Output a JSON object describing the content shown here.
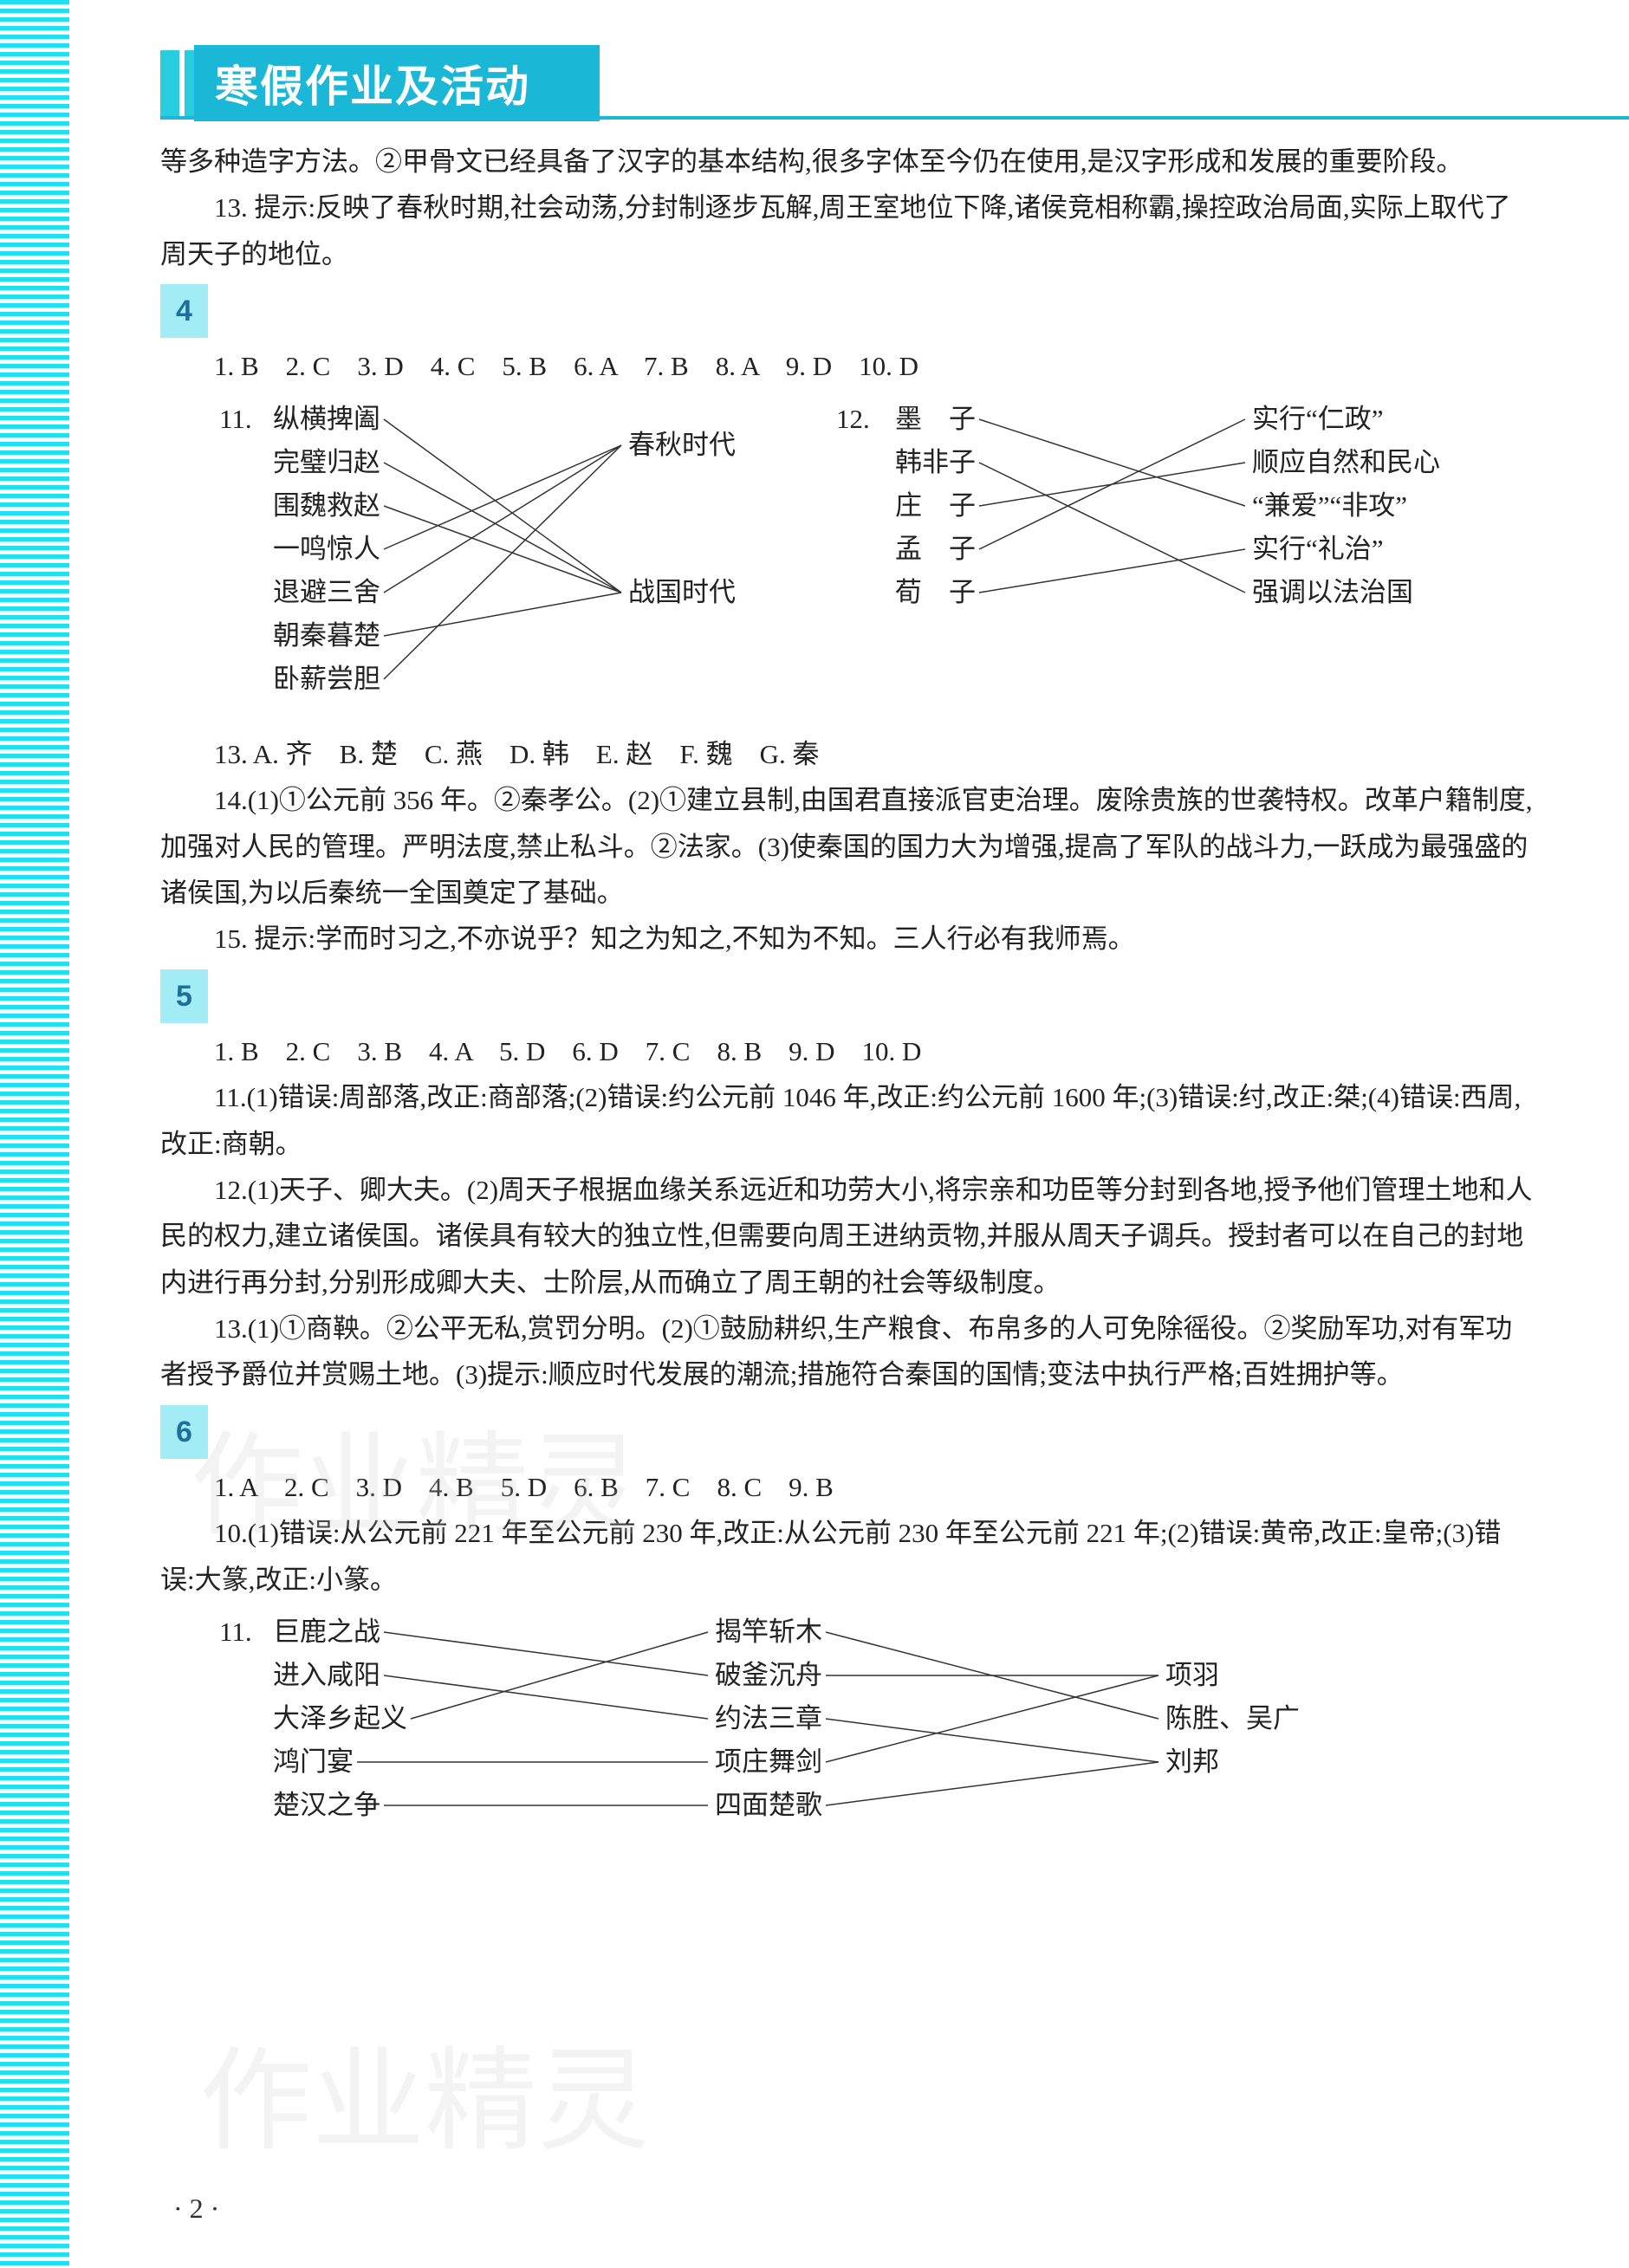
{
  "header": {
    "title": "寒假作业及活动"
  },
  "intro_continuation": {
    "line1": "等多种造字方法。②甲骨文已经具备了汉字的基本结构,很多字体至今仍在使用,是汉字形成和发展的重要阶段。",
    "q13": "13. 提示:反映了春秋时期,社会动荡,分封制逐步瓦解,周王室地位下降,诸侯竞相称霸,操控政治局面,实际上取代了周天子的地位。"
  },
  "section4": {
    "label": "4",
    "mc": "1. B　2. C　3. D　4. C　5. B　6. A　7. B　8. A　9. D　10. D",
    "match11": {
      "prefix": "11.",
      "left": [
        "纵横捭阖",
        "完璧归赵",
        "围魏救赵",
        "一鸣惊人",
        "退避三舍",
        "朝秦暮楚",
        "卧薪尝胆"
      ],
      "right": [
        "春秋时代",
        "战国时代"
      ],
      "edges": [
        [
          0,
          1
        ],
        [
          1,
          1
        ],
        [
          2,
          1
        ],
        [
          3,
          0
        ],
        [
          4,
          0
        ],
        [
          5,
          1
        ],
        [
          6,
          0
        ]
      ],
      "line_color": "#333333"
    },
    "match12": {
      "prefix": "12.",
      "left": [
        "墨　子",
        "韩非子",
        "庄　子",
        "孟　子",
        "荀　子"
      ],
      "right": [
        "实行“仁政”",
        "顺应自然和民心",
        "“兼爱”“非攻”",
        "实行“礼治”",
        "强调以法治国"
      ],
      "edges": [
        [
          0,
          2
        ],
        [
          1,
          4
        ],
        [
          2,
          1
        ],
        [
          3,
          0
        ],
        [
          4,
          3
        ]
      ],
      "line_color": "#333333"
    },
    "q13": "13. A. 齐　B. 楚　C. 燕　D. 韩　E. 赵　F. 魏　G. 秦",
    "q14": "14.(1)①公元前 356 年。②秦孝公。(2)①建立县制,由国君直接派官吏治理。废除贵族的世袭特权。改革户籍制度,加强对人民的管理。严明法度,禁止私斗。②法家。(3)使秦国的国力大为增强,提高了军队的战斗力,一跃成为最强盛的诸侯国,为以后秦统一全国奠定了基础。",
    "q15": "15. 提示:学而时习之,不亦说乎？知之为知之,不知为不知。三人行必有我师焉。"
  },
  "section5": {
    "label": "5",
    "mc": "1. B　2. C　3. B　4. A　5. D　6. D　7. C　8. B　9. D　10. D",
    "q11": "11.(1)错误:周部落,改正:商部落;(2)错误:约公元前 1046 年,改正:约公元前 1600 年;(3)错误:纣,改正:桀;(4)错误:西周,改正:商朝。",
    "q12": "12.(1)天子、卿大夫。(2)周天子根据血缘关系远近和功劳大小,将宗亲和功臣等分封到各地,授予他们管理土地和人民的权力,建立诸侯国。诸侯具有较大的独立性,但需要向周王进纳贡物,并服从周天子调兵。授封者可以在自己的封地内进行再分封,分别形成卿大夫、士阶层,从而确立了周王朝的社会等级制度。",
    "q13": "13.(1)①商鞅。②公平无私,赏罚分明。(2)①鼓励耕织,生产粮食、布帛多的人可免除徭役。②奖励军功,对有军功者授予爵位并赏赐土地。(3)提示:顺应时代发展的潮流;措施符合秦国的国情;变法中执行严格;百姓拥护等。"
  },
  "section6": {
    "label": "6",
    "mc": "1. A　2. C　3. D　4. B　5. D　6. B　7. C　8. C　9. B",
    "q10": "10.(1)错误:从公元前 221 年至公元前 230 年,改正:从公元前 230 年至公元前 221 年;(2)错误:黄帝,改正:皇帝;(3)错误:大篆,改正:小篆。",
    "match11": {
      "prefix": "11.",
      "left": [
        "巨鹿之战",
        "进入咸阳",
        "大泽乡起义",
        "鸿门宴",
        "楚汉之争"
      ],
      "mid": [
        "揭竿斩木",
        "破釜沉舟",
        "约法三章",
        "项庄舞剑",
        "四面楚歌"
      ],
      "right": [
        "项羽",
        "陈胜、吴广",
        "刘邦"
      ],
      "edgesLM": [
        [
          0,
          1
        ],
        [
          1,
          2
        ],
        [
          2,
          0
        ],
        [
          3,
          3
        ],
        [
          4,
          4
        ]
      ],
      "edgesMR": [
        [
          0,
          1
        ],
        [
          1,
          0
        ],
        [
          2,
          2
        ],
        [
          3,
          0
        ],
        [
          4,
          2
        ]
      ],
      "line_color": "#333333"
    }
  },
  "page_number": "· 2 ·",
  "watermark1": "作业精灵",
  "watermark2": "作业精灵",
  "colors": {
    "stripe": "#1de0f0",
    "header_bg": "#1ab7d6",
    "section_bg": "#a2ecf6",
    "text": "#222222"
  }
}
